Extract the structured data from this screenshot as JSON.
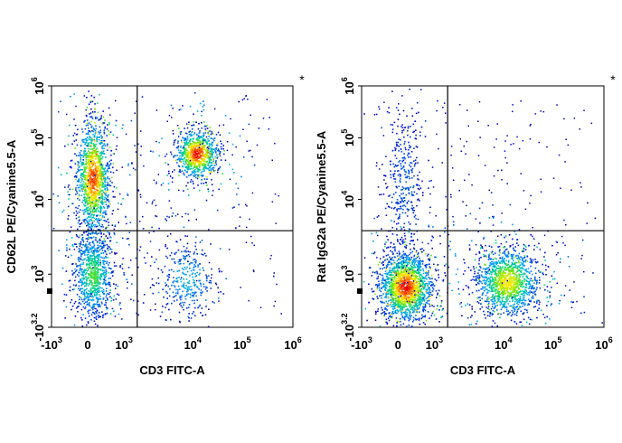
{
  "chart_data": [
    {
      "type": "scatter",
      "subtype": "flow-cytometry-density-dot-plot",
      "title": "",
      "corner_mark": "*",
      "xlabel": "CD3 FITC-A",
      "ylabel": "CD62L PE/Cyanine5.5-A",
      "x_ticks": [
        {
          "base": "-10",
          "exp": "3"
        },
        {
          "base": "0",
          "exp": ""
        },
        {
          "base": "10",
          "exp": "3"
        },
        {
          "base": "10",
          "exp": "4"
        },
        {
          "base": "10",
          "exp": "5"
        },
        {
          "base": "10",
          "exp": "6"
        }
      ],
      "y_ticks": [
        {
          "base": "-10",
          "exp": "3.2"
        },
        {
          "base": "10",
          "exp": "3"
        },
        {
          "base": "10",
          "exp": "4"
        },
        {
          "base": "10",
          "exp": "5"
        },
        {
          "base": "10",
          "exp": "6"
        }
      ],
      "quadrant_gate": {
        "x": 1500,
        "y": 2500
      },
      "populations": [
        {
          "name": "CD3- CD62L+",
          "x_center": 0,
          "y_center": 20000,
          "relative_density": "high"
        },
        {
          "name": "CD3- CD62L-",
          "x_center": 0,
          "y_center": 800,
          "relative_density": "high"
        },
        {
          "name": "CD3+ CD62L+",
          "x_center": 10000,
          "y_center": 50000,
          "relative_density": "high"
        },
        {
          "name": "CD3+ CD62L-",
          "x_center": 10000,
          "y_center": 800,
          "relative_density": "low"
        }
      ]
    },
    {
      "type": "scatter",
      "subtype": "flow-cytometry-density-dot-plot",
      "title": "",
      "corner_mark": "*",
      "xlabel": "CD3 FITC-A",
      "ylabel": "Rat IgG2a PE/Cyanine5.5-A",
      "x_ticks": [
        {
          "base": "-10",
          "exp": "3"
        },
        {
          "base": "0",
          "exp": ""
        },
        {
          "base": "10",
          "exp": "3"
        },
        {
          "base": "10",
          "exp": "4"
        },
        {
          "base": "10",
          "exp": "5"
        },
        {
          "base": "10",
          "exp": "6"
        }
      ],
      "y_ticks": [
        {
          "base": "-10",
          "exp": "3.2"
        },
        {
          "base": "10",
          "exp": "3"
        },
        {
          "base": "10",
          "exp": "4"
        },
        {
          "base": "10",
          "exp": "5"
        },
        {
          "base": "10",
          "exp": "6"
        }
      ],
      "quadrant_gate": {
        "x": 1500,
        "y": 2500
      },
      "populations": [
        {
          "name": "CD3- isotype-",
          "x_center": 0,
          "y_center": 700,
          "relative_density": "high"
        },
        {
          "name": "CD3+ isotype-",
          "x_center": 10000,
          "y_center": 800,
          "relative_density": "high"
        },
        {
          "name": "CD3- isotype+",
          "x_center": 0,
          "y_center": 20000,
          "relative_density": "low"
        }
      ]
    }
  ]
}
